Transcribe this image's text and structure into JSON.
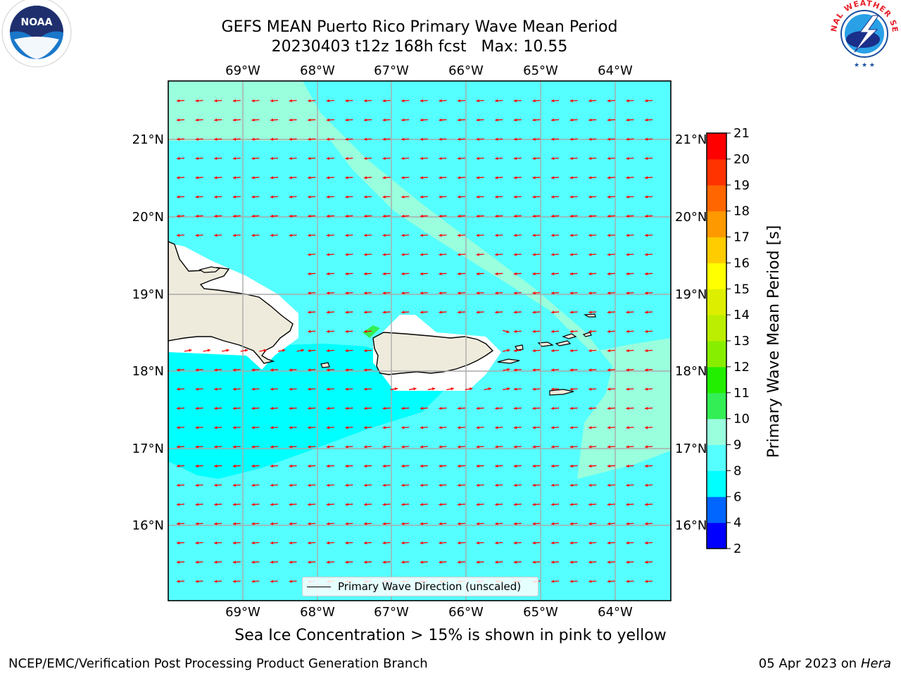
{
  "title": {
    "line1": "GEFS MEAN Puerto Rico Primary Wave Mean Period",
    "line2": "20230403 t12z 168h fcst   Max: 10.55"
  },
  "map": {
    "lon_ticks": [
      "69°W",
      "68°W",
      "67°W",
      "66°W",
      "65°W",
      "64°W"
    ],
    "lat_ticks": [
      "21°N",
      "20°N",
      "19°N",
      "18°N",
      "17°N",
      "16°N"
    ],
    "lon_range": [
      -70.0,
      -63.25
    ],
    "lat_range": [
      15.0,
      21.75
    ],
    "arrow_color": "#ff0000",
    "land_color": "#efebdc",
    "features": [
      "Hispaniola",
      "Puerto Rico",
      "Virgin Islands"
    ]
  },
  "legend": {
    "label": "Primary Wave Direction (unscaled)"
  },
  "colorbar": {
    "label": "Primary Wave Mean Period [s]",
    "ticks": [
      "2",
      "4",
      "6",
      "8",
      "9",
      "10",
      "11",
      "12",
      "13",
      "14",
      "15",
      "16",
      "17",
      "18",
      "19",
      "20",
      "21"
    ],
    "colors": [
      "#0000ff",
      "#0066ff",
      "#00ffff",
      "#55ffff",
      "#99ffdd",
      "#33ee55",
      "#22ee00",
      "#88ee00",
      "#bbee00",
      "#ddee00",
      "#ffff00",
      "#ffcc00",
      "#ff9900",
      "#ff6600",
      "#ff3300",
      "#ff0000"
    ]
  },
  "note": "Sea Ice Concentration > 15% is shown in pink to yellow",
  "footer": {
    "left": "NCEP/EMC/Verification Post Processing Product Generation Branch",
    "right_date": "05 Apr 2023 on ",
    "right_host": "Hera"
  },
  "logos": {
    "noaa_text": "NOAA",
    "nws_text": "NATIONAL WEATHER SERVICE"
  }
}
